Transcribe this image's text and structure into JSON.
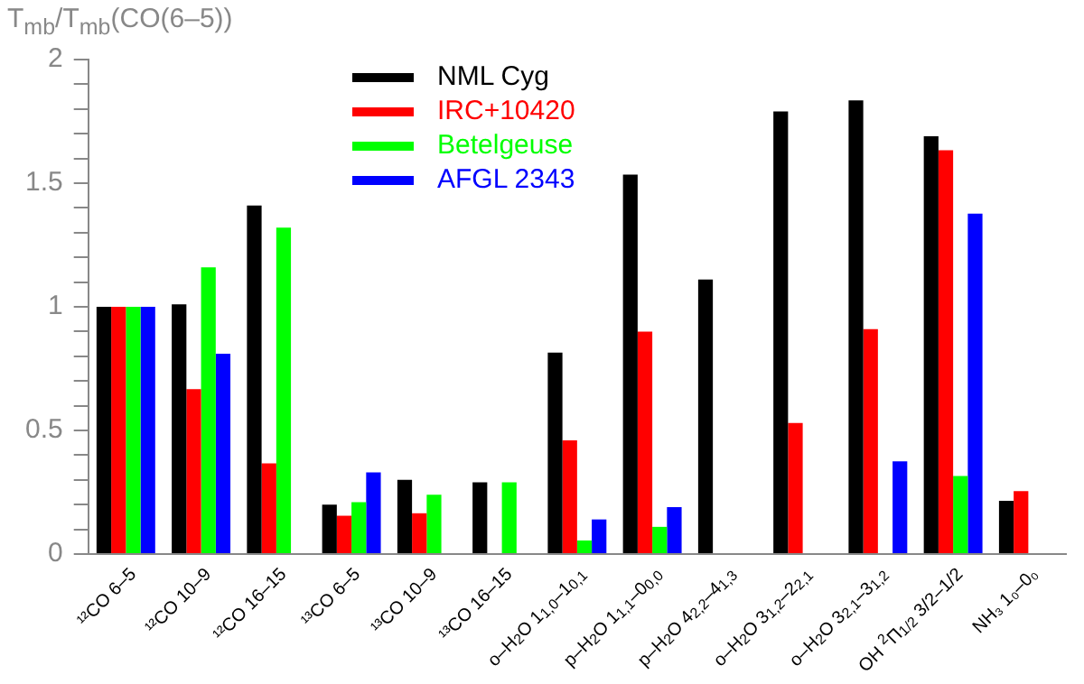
{
  "chart_data": {
    "type": "bar",
    "ylabel": "T$_{mb}$/T$_{mb}$(CO(6–5))",
    "categories": [
      "¹²CO 6–5",
      "¹²CO 10–9",
      "¹²CO 16–15",
      "¹³CO 6–5",
      "¹³CO 10–9",
      "¹³CO 16–15",
      "o–H$_{2}$O 1$_{1,0}$–1$_{0,1}$",
      "p–H$_{2}$O 1$_{1,1}$–0$_{0,0}$",
      "p–H$_{2}$O 4$_{2,2}$–4$_{1,3}$",
      "o–H$_{2}$O 3$_{1,2}$–2$_{2,1}$",
      "o–H$_{2}$O 3$_{2,1}$–3$_{1,2}$",
      "OH $^{2}$Π$_{1/2}$ 3/2–1/2",
      "NH₃ 1₀–0₀"
    ],
    "series": [
      {
        "name": "NML Cyg",
        "color": "#000000",
        "values": [
          1.0,
          1.01,
          1.41,
          0.2,
          0.3,
          0.29,
          0.815,
          1.535,
          1.11,
          1.79,
          1.835,
          1.69,
          0.215
        ]
      },
      {
        "name": "IRC+10420",
        "color": "#ff0000",
        "values": [
          1.0,
          0.667,
          0.367,
          0.155,
          0.165,
          null,
          0.46,
          0.9,
          null,
          0.53,
          0.91,
          1.633,
          0.255
        ]
      },
      {
        "name": "Betelgeuse",
        "color": "#00ff00",
        "values": [
          1.0,
          1.16,
          1.32,
          0.21,
          0.24,
          0.29,
          0.055,
          0.11,
          null,
          null,
          null,
          0.316,
          null
        ]
      },
      {
        "name": "AFGL 2343",
        "color": "#0000ff",
        "values": [
          1.0,
          0.81,
          null,
          0.33,
          null,
          null,
          0.14,
          0.19,
          null,
          null,
          0.375,
          1.377,
          null
        ]
      }
    ],
    "ylim": [
      0,
      2
    ],
    "yticks": [
      0,
      {
        "value": 0.1,
        "label": null
      },
      {
        "value": 0.2,
        "label": null
      },
      {
        "value": 0.3,
        "label": null
      },
      {
        "value": 0.4,
        "label": null
      },
      0.5,
      {
        "value": 0.6,
        "label": null
      },
      {
        "value": 0.7,
        "label": null
      },
      {
        "value": 0.8,
        "label": null
      },
      {
        "value": 0.9,
        "label": null
      },
      1,
      {
        "value": 1.1,
        "label": null
      },
      {
        "value": 1.2,
        "label": null
      },
      {
        "value": 1.3,
        "label": null
      },
      {
        "value": 1.4,
        "label": null
      },
      1.5,
      {
        "value": 1.6,
        "label": null
      },
      {
        "value": 1.7,
        "label": null
      },
      {
        "value": 1.8,
        "label": null
      },
      {
        "value": 1.9,
        "label": null
      },
      2
    ],
    "grid": false,
    "legend": "top"
  }
}
